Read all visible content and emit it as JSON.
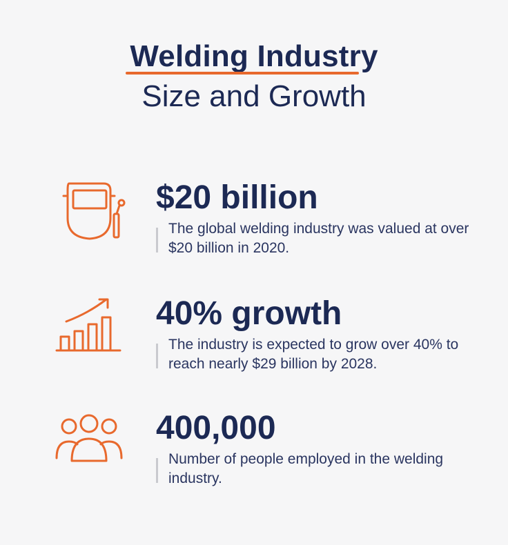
{
  "title": {
    "main": "Welding Industry",
    "sub": "Size and Growth"
  },
  "stats": [
    {
      "icon": "welding-helmet-icon",
      "value": "$20 billion",
      "description": "The global welding industry was valued at over $20 billion in 2020."
    },
    {
      "icon": "growth-chart-icon",
      "value": "40% growth",
      "description": "The industry is expected to grow over 40% to reach nearly $29 billion by 2028."
    },
    {
      "icon": "people-group-icon",
      "value": "400,000",
      "description": "Number of people employed in the welding industry."
    }
  ],
  "colors": {
    "accent": "#e8692d",
    "text": "#1c2954",
    "background": "#f6f6f7"
  }
}
